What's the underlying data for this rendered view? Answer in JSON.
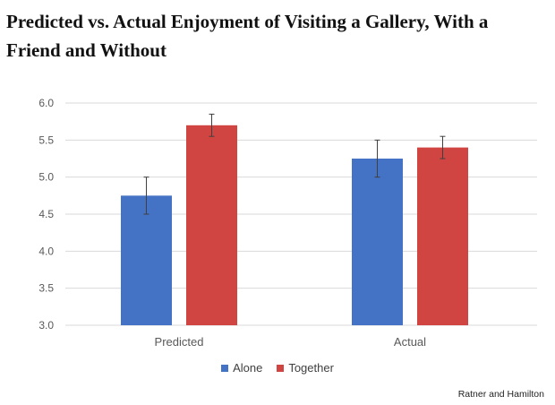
{
  "chart_data": {
    "type": "bar",
    "title": "Predicted vs. Actual Enjoyment of Visiting a Gallery, With a Friend and Without",
    "categories": [
      "Predicted",
      "Actual"
    ],
    "series": [
      {
        "name": "Alone",
        "color": "#4472C4",
        "values": [
          4.75,
          5.25
        ],
        "error": [
          0.25,
          0.25
        ]
      },
      {
        "name": "Together",
        "color": "#D04541",
        "values": [
          5.7,
          5.4
        ],
        "error": [
          0.15,
          0.15
        ]
      }
    ],
    "ylim": [
      3.0,
      6.0
    ],
    "yticks": [
      "3.0",
      "3.5",
      "4.0",
      "4.5",
      "5.0",
      "5.5",
      "6.0"
    ],
    "grid": true,
    "legend_position": "bottom-center",
    "xlabel": "",
    "ylabel": ""
  },
  "source_credit": "Ratner and Hamilton"
}
